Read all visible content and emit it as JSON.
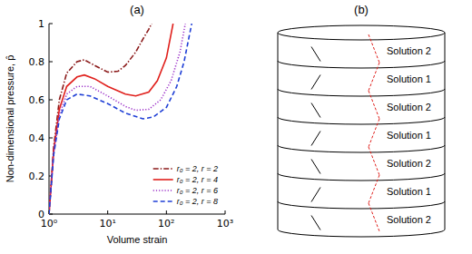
{
  "chart_data": {
    "type": "line",
    "title": "(a)",
    "x_label": "Volume strain",
    "y_label": "Non-dimensional pressure, p̂",
    "log": "x",
    "grid": false,
    "legend": "lower right",
    "xlim": [
      1,
      1000
    ],
    "xticks": [
      {
        "value": 1,
        "label": "10⁰"
      },
      {
        "value": 10,
        "label": "10¹"
      },
      {
        "value": 100,
        "label": "10²"
      },
      {
        "value": 1000,
        "label": "10³"
      }
    ],
    "ylim": [
      0,
      1
    ],
    "yticks": [
      0,
      0.2,
      0.4,
      0.6,
      0.8,
      1
    ],
    "series": [
      {
        "name": "r₀ = 2,  r = 2",
        "color": "#8b1a1a",
        "line_style": "dash-dot",
        "x": [
          1,
          1.2,
          1.5,
          2,
          3,
          4,
          6,
          10,
          15,
          20,
          30,
          40,
          50,
          56
        ],
        "values": [
          0,
          0.35,
          0.6,
          0.74,
          0.8,
          0.81,
          0.78,
          0.745,
          0.75,
          0.78,
          0.85,
          0.92,
          0.97,
          1.0
        ]
      },
      {
        "name": "r₀ = 2,  r = 4",
        "color": "#e0201c",
        "line_style": "solid",
        "x": [
          1,
          1.2,
          1.5,
          2,
          3,
          4,
          6,
          10,
          20,
          30,
          50,
          70,
          100,
          130
        ],
        "values": [
          0,
          0.33,
          0.55,
          0.67,
          0.72,
          0.73,
          0.71,
          0.67,
          0.63,
          0.62,
          0.64,
          0.7,
          0.82,
          1.0
        ]
      },
      {
        "name": "r₀ = 2,  r = 6",
        "color": "#9b30c8",
        "line_style": "dotted",
        "x": [
          1,
          1.2,
          1.5,
          2,
          3,
          5,
          10,
          20,
          30,
          50,
          80,
          120,
          170,
          210
        ],
        "values": [
          0,
          0.32,
          0.52,
          0.63,
          0.67,
          0.67,
          0.62,
          0.565,
          0.545,
          0.55,
          0.6,
          0.7,
          0.85,
          1.0
        ]
      },
      {
        "name": "r₀ = 2,  r = 8",
        "color": "#1f3fd6",
        "line_style": "dashed",
        "x": [
          1,
          1.2,
          1.5,
          2,
          3,
          5,
          10,
          20,
          40,
          60,
          100,
          150,
          200,
          270
        ],
        "values": [
          0,
          0.31,
          0.5,
          0.6,
          0.63,
          0.62,
          0.58,
          0.53,
          0.5,
          0.51,
          0.56,
          0.67,
          0.8,
          1.0
        ]
      }
    ]
  },
  "diagram": {
    "title": "(b)",
    "layers": [
      "Solution 2",
      "Solution 1",
      "Solution 2",
      "Solution 1",
      "Solution 2",
      "Solution 1",
      "Solution 2"
    ]
  }
}
